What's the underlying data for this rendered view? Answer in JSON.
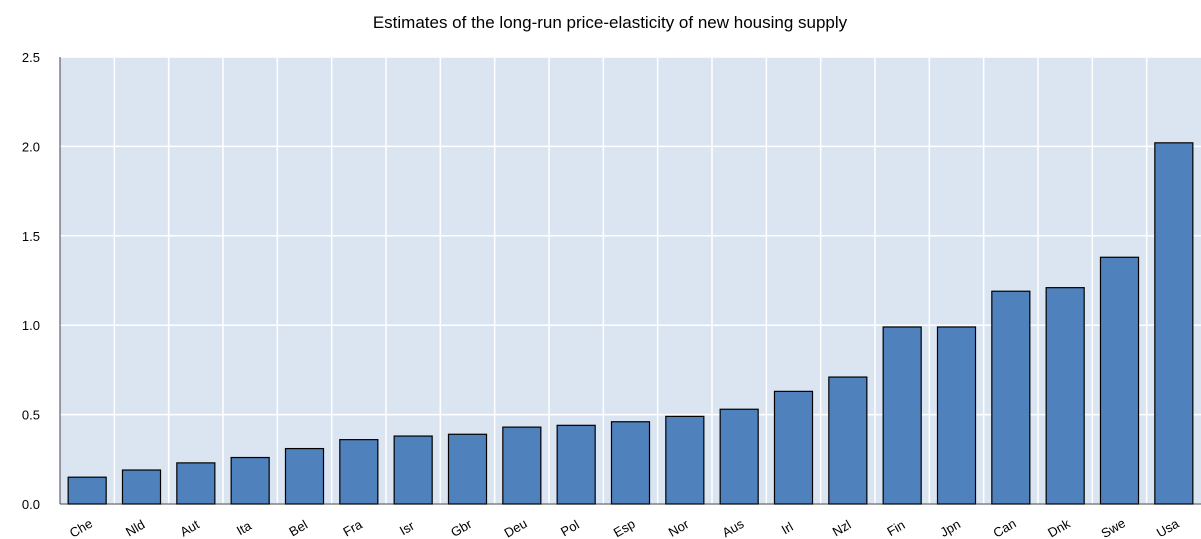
{
  "chart_data": {
    "type": "bar",
    "title": "Estimates of the long-run price-elasticity of new housing supply",
    "categories": [
      "Che",
      "Nld",
      "Aut",
      "Ita",
      "Bel",
      "Fra",
      "Isr",
      "Gbr",
      "Deu",
      "Pol",
      "Esp",
      "Nor",
      "Aus",
      "Irl",
      "Nzl",
      "Fin",
      "Jpn",
      "Can",
      "Dnk",
      "Swe",
      "Usa"
    ],
    "values": [
      0.15,
      0.19,
      0.23,
      0.26,
      0.31,
      0.36,
      0.38,
      0.39,
      0.43,
      0.44,
      0.46,
      0.49,
      0.53,
      0.63,
      0.71,
      0.99,
      0.99,
      1.19,
      1.21,
      1.38,
      2.02
    ],
    "color": "#4f81bd",
    "ylim": [
      0,
      2.5
    ],
    "yticks": [
      {
        "value": 0,
        "label": "0.0"
      },
      0.5,
      {
        "value": 1,
        "label": "1.0"
      },
      1.5,
      {
        "value": 2,
        "label": "2.0"
      },
      2.5
    ],
    "grid": true
  }
}
